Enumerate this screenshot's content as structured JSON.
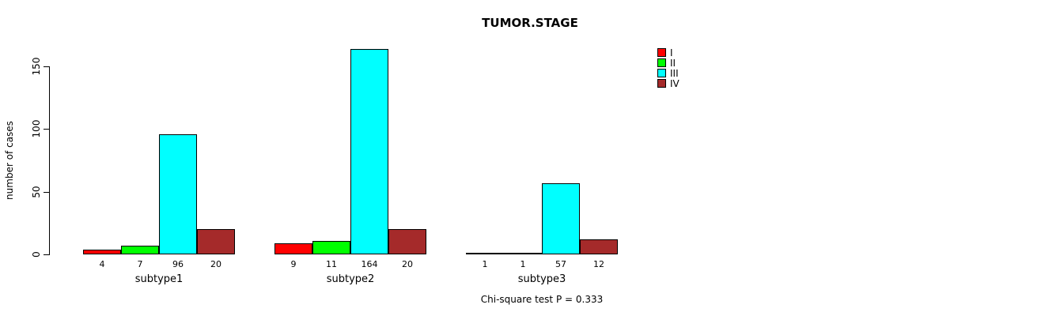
{
  "chart_data": {
    "type": "bar",
    "title": "TUMOR.STAGE",
    "ylabel": "number of cases",
    "categories": [
      "subtype1",
      "subtype2",
      "subtype3"
    ],
    "series": [
      {
        "name": "I",
        "color": "#FF0000",
        "values": [
          4,
          9,
          1
        ]
      },
      {
        "name": "II",
        "color": "#00FF00",
        "values": [
          7,
          11,
          1
        ]
      },
      {
        "name": "III",
        "color": "#00FFFF",
        "values": [
          96,
          164,
          57
        ]
      },
      {
        "name": "IV",
        "color": "#A52A2A",
        "values": [
          20,
          20,
          12
        ]
      }
    ],
    "yticks": [
      0,
      50,
      100,
      150
    ],
    "ylim": [
      0,
      170
    ],
    "grid": false,
    "bar_value_labels": true,
    "legend_position": "top-right",
    "legend_entries": [
      "I",
      "II",
      "III",
      "IV"
    ],
    "footnote": "Chi-square test P = 0.333"
  }
}
